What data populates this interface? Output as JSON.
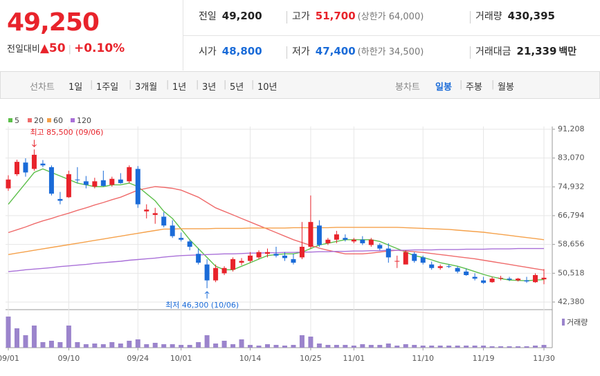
{
  "header": {
    "price": "49,250",
    "change_label": "전일대비",
    "change_arrow": "▲",
    "change": "50",
    "change_pct": "+0.10%",
    "quotes": [
      [
        {
          "label": "전일",
          "value": "49,200",
          "color": "#222222"
        },
        {
          "label": "고가",
          "value": "51,700",
          "note": "(상한가 64,000)",
          "color": "#e8232b"
        },
        {
          "label": "거래량",
          "value": "430,395",
          "color": "#222222"
        }
      ],
      [
        {
          "label": "시가",
          "value": "48,800",
          "color": "#1a6bd8"
        },
        {
          "label": "저가",
          "value": "47,400",
          "note": "(하한가 34,500)",
          "color": "#1a6bd8"
        },
        {
          "label": "거래대금",
          "value": "21,339",
          "unit": "백만",
          "color": "#222222"
        }
      ]
    ]
  },
  "tabs": {
    "line": {
      "label": "선차트",
      "items": [
        "1일",
        "1주일",
        "3개월",
        "1년",
        "3년",
        "5년",
        "10년"
      ]
    },
    "candle": {
      "label": "봉차트",
      "items": [
        "일봉",
        "주봉",
        "월봉"
      ],
      "selected": 0
    }
  },
  "chart_data": {
    "type": "candlestick",
    "categories": [
      "09/01",
      null,
      null,
      null,
      null,
      null,
      null,
      "09/10",
      null,
      null,
      null,
      null,
      null,
      null,
      null,
      "09/24",
      null,
      null,
      null,
      null,
      "10/01",
      null,
      null,
      null,
      null,
      null,
      null,
      null,
      "10/14",
      null,
      null,
      null,
      null,
      null,
      null,
      "10/25",
      null,
      null,
      null,
      null,
      "11/01",
      null,
      null,
      null,
      null,
      null,
      null,
      null,
      "11/10",
      null,
      null,
      null,
      null,
      null,
      null,
      "11/19",
      null,
      null,
      null,
      null,
      null,
      null,
      "11/30"
    ],
    "open": [
      74500,
      78500,
      81800,
      80000,
      81500,
      80500,
      71500,
      72000,
      77000,
      76500,
      75000,
      76800,
      75500,
      77000,
      76500,
      80000,
      68000,
      67000,
      66500,
      64000,
      60500,
      59500,
      56000,
      53000,
      48500,
      50500,
      51500,
      53500,
      54000,
      55000,
      56000,
      56000,
      55500,
      54500,
      55000,
      58000,
      64000,
      59000,
      60000,
      60500,
      59500,
      60000,
      58500,
      58500,
      57500,
      54000,
      53000,
      56000,
      55000,
      53000,
      52000,
      52500,
      52000,
      51000,
      49500,
      48500,
      48000,
      49000,
      49000,
      48500,
      48500,
      48000,
      48800
    ],
    "high": [
      78200,
      82600,
      83000,
      85500,
      82500,
      81000,
      73500,
      79500,
      80500,
      78000,
      77500,
      79500,
      77800,
      78800,
      81000,
      80800,
      70000,
      69000,
      67800,
      65500,
      62000,
      60000,
      57500,
      54500,
      53000,
      52500,
      55000,
      54800,
      56500,
      57000,
      57500,
      58000,
      56500,
      56000,
      65000,
      72500,
      65500,
      60500,
      62500,
      61500,
      60500,
      61000,
      60500,
      59000,
      59000,
      55500,
      57000,
      56500,
      55500,
      53800,
      53000,
      53000,
      52500,
      51800,
      50500,
      49500,
      49500,
      49800,
      49500,
      49200,
      49500,
      50500,
      51700
    ],
    "low": [
      73800,
      78000,
      77800,
      79500,
      80500,
      72500,
      70000,
      71800,
      76000,
      74500,
      74500,
      75000,
      75000,
      75800,
      76000,
      69000,
      66000,
      64500,
      63500,
      60500,
      59500,
      57000,
      53000,
      46300,
      48000,
      50000,
      51000,
      52800,
      53500,
      54500,
      55000,
      55000,
      54000,
      53000,
      54500,
      57500,
      58000,
      58500,
      59000,
      59500,
      59000,
      58500,
      58000,
      57000,
      53500,
      52000,
      53000,
      53500,
      53000,
      51500,
      51500,
      52000,
      50500,
      49800,
      48500,
      47500,
      47800,
      48500,
      48300,
      48200,
      47800,
      47800,
      47400
    ],
    "close": [
      77000,
      82000,
      79000,
      84000,
      81000,
      73000,
      71000,
      78500,
      76800,
      75500,
      76500,
      75200,
      77200,
      76000,
      80500,
      70000,
      68500,
      67500,
      64000,
      61000,
      60000,
      58000,
      53500,
      48500,
      52000,
      52000,
      54500,
      54000,
      55500,
      56500,
      56500,
      55500,
      54800,
      53500,
      58000,
      65000,
      58500,
      60000,
      61500,
      60000,
      60000,
      59000,
      60000,
      57500,
      55000,
      54000,
      56500,
      54000,
      53500,
      52000,
      52500,
      52300,
      51000,
      50000,
      49000,
      47800,
      49000,
      49200,
      48700,
      49000,
      48200,
      50000,
      49250
    ],
    "up_color": "#e8232b",
    "down_color": "#1a6bd8",
    "ma": [
      {
        "name": "5",
        "color": "#5cbf4a",
        "values": [
          70000,
          73000,
          76000,
          79000,
          80000,
          79000,
          78000,
          77000,
          76000,
          75500,
          75000,
          75000,
          75500,
          75500,
          76000,
          75000,
          73000,
          71000,
          68000,
          66000,
          63000,
          60000,
          57500,
          55000,
          52500,
          51500,
          51500,
          52500,
          53500,
          54500,
          55500,
          55800,
          56000,
          56000,
          56500,
          57500,
          58500,
          59000,
          59500,
          60000,
          60000,
          60000,
          60000,
          59500,
          58500,
          57500,
          56500,
          55500,
          55000,
          54300,
          53500,
          53000,
          52500,
          51800,
          51000,
          50200,
          49500,
          49000,
          48600,
          48500,
          48400,
          48600,
          48700
        ]
      },
      {
        "name": "20",
        "color": "#ef6b6b",
        "values": [
          62000,
          62800,
          63600,
          64500,
          65300,
          66000,
          66800,
          67500,
          68300,
          69000,
          69800,
          70500,
          71300,
          72000,
          73000,
          74000,
          74500,
          75000,
          74800,
          74500,
          74000,
          73000,
          72000,
          70500,
          69000,
          68000,
          67000,
          66000,
          65000,
          64000,
          63000,
          62000,
          61000,
          60000,
          59200,
          58400,
          57600,
          57000,
          56500,
          56000,
          56000,
          56000,
          56200,
          56500,
          56800,
          57000,
          56800,
          56600,
          56400,
          56100,
          55800,
          55500,
          55200,
          54900,
          54600,
          54200,
          53800,
          53400,
          53000,
          52600,
          52200,
          51800,
          51400
        ]
      },
      {
        "name": "60",
        "color": "#f5a14a",
        "values": [
          55800,
          56200,
          56600,
          57000,
          57400,
          57800,
          58200,
          58600,
          59000,
          59400,
          59800,
          60200,
          60600,
          61000,
          61400,
          61800,
          62200,
          62600,
          63000,
          63000,
          63100,
          63100,
          63100,
          63100,
          63200,
          63200,
          63200,
          63200,
          63300,
          63300,
          63300,
          63300,
          63300,
          63400,
          63400,
          63400,
          63400,
          63400,
          63500,
          63500,
          63500,
          63500,
          63500,
          63500,
          63500,
          63500,
          63400,
          63300,
          63200,
          63100,
          63000,
          62900,
          62700,
          62500,
          62300,
          62100,
          61800,
          61500,
          61200,
          60900,
          60600,
          60300,
          60000
        ]
      },
      {
        "name": "120",
        "color": "#a970d8",
        "values": [
          51000,
          51200,
          51500,
          51700,
          51900,
          52100,
          52400,
          52600,
          52800,
          53000,
          53300,
          53500,
          53700,
          53900,
          54200,
          54400,
          54600,
          54800,
          55100,
          55300,
          55500,
          55600,
          55700,
          55800,
          55900,
          56000,
          56000,
          56100,
          56200,
          56200,
          56300,
          56300,
          56400,
          56400,
          56500,
          56500,
          56600,
          56600,
          56700,
          56700,
          56800,
          56800,
          56900,
          56900,
          57000,
          57000,
          57000,
          57100,
          57100,
          57100,
          57200,
          57200,
          57200,
          57300,
          57300,
          57300,
          57400,
          57400,
          57400,
          57500,
          57500,
          57500,
          57500
        ]
      }
    ],
    "volume": {
      "name": "거래량",
      "color": "#9b84cc",
      "values": [
        4842000,
        3012800,
        1936800,
        3443200,
        860800,
        1076000,
        860800,
        3443200,
        860800,
        538000,
        645600,
        538000,
        860800,
        645600,
        1076000,
        1291200,
        538000,
        753200,
        538000,
        538000,
        430400,
        430400,
        860800,
        1936800,
        645600,
        1076000,
        538000,
        1291200,
        430400,
        322800,
        538000,
        430400,
        322800,
        430400,
        1936800,
        1721600,
        645600,
        430400,
        430400,
        430400,
        322800,
        538000,
        430400,
        430400,
        645600,
        322800,
        538000,
        430400,
        322800,
        322800,
        322800,
        322800,
        322800,
        322800,
        322800,
        322800,
        215200,
        215200,
        215200,
        215200,
        215200,
        322800,
        430395
      ]
    },
    "annotations": {
      "high": "최고 85,500 (09/06)",
      "low": "최저 46,300 (10/06)"
    },
    "ylim": [
      42380,
      91208
    ],
    "yticks": [
      {
        "value": 91208,
        "label": "91,208"
      },
      {
        "value": 83070,
        "label": "83,070"
      },
      {
        "value": 74932,
        "label": "74,932"
      },
      {
        "value": 66794,
        "label": "66,794"
      },
      {
        "value": 58656,
        "label": "58,656"
      },
      {
        "value": 50518,
        "label": "50,518"
      },
      {
        "value": 42380,
        "label": "42,380"
      }
    ],
    "grid": true
  }
}
